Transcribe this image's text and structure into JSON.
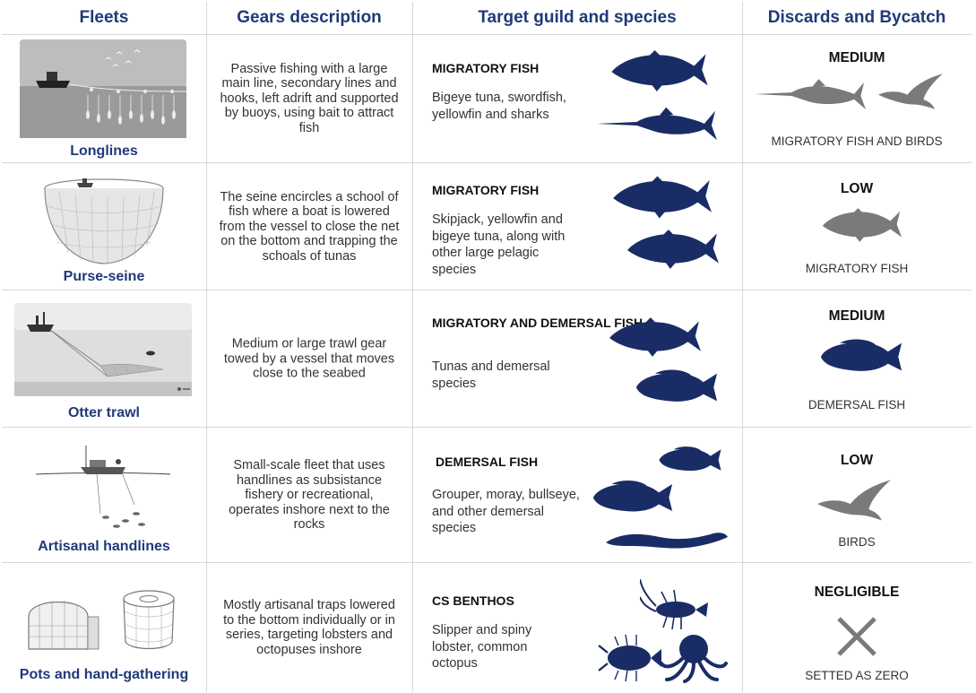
{
  "headers": {
    "fleets": "Fleets",
    "gears": "Gears description",
    "target": "Target guild and species",
    "discards": "Discards and Bycatch"
  },
  "rows": [
    {
      "fleet": "Longlines",
      "gear": "Passive fishing with a large main line, secondary lines and hooks, left adrift and supported by buoys, using bait to attract fish",
      "guild": "MIGRATORY FISH",
      "species": "Bigeye tuna, swordfish, yellowfin and sharks",
      "level": "MEDIUM",
      "discard_label": "MIGRATORY FISH AND BIRDS"
    },
    {
      "fleet": "Purse-seine",
      "gear": "The seine encircles a school of fish where a boat is lowered from the vessel to close the net on the bottom and trapping the schoals of tunas",
      "guild": "MIGRATORY FISH",
      "species": "Skipjack, yellowfin and bigeye tuna, along with other large pelagic species",
      "level": "LOW",
      "discard_label": "MIGRATORY FISH"
    },
    {
      "fleet": "Otter trawl",
      "gear": "Medium or large trawl gear towed by a vessel that moves close to the seabed",
      "guild": "MIGRATORY AND DEMERSAL FISH",
      "species": "Tunas and demersal species",
      "level": "MEDIUM",
      "discard_label": "DEMERSAL FISH"
    },
    {
      "fleet": "Artisanal handlines",
      "gear": "Small-scale fleet that uses handlines as subsistance fishery or recreational, operates inshore next to the rocks",
      "guild": "DEMERSAL FISH",
      "species": "Grouper, moray, bullseye, and other demersal species",
      "level": "LOW",
      "discard_label": "BIRDS"
    },
    {
      "fleet": "Pots and hand-gathering",
      "gear": "Mostly artisanal traps lowered to the bottom individually or in series, targeting lobsters and octopuses inshore",
      "guild": "CS BENTHOS",
      "species": "Slipper and spiny lobster,  common octopus",
      "level": "NEGLIGIBLE",
      "discard_label": "SETTED AS ZERO"
    }
  ],
  "colors": {
    "navy": "#1a2c66",
    "header_text": "#1f3a7a",
    "grey_icon": "#7a7a7a",
    "grid": "#d7d7d7"
  }
}
